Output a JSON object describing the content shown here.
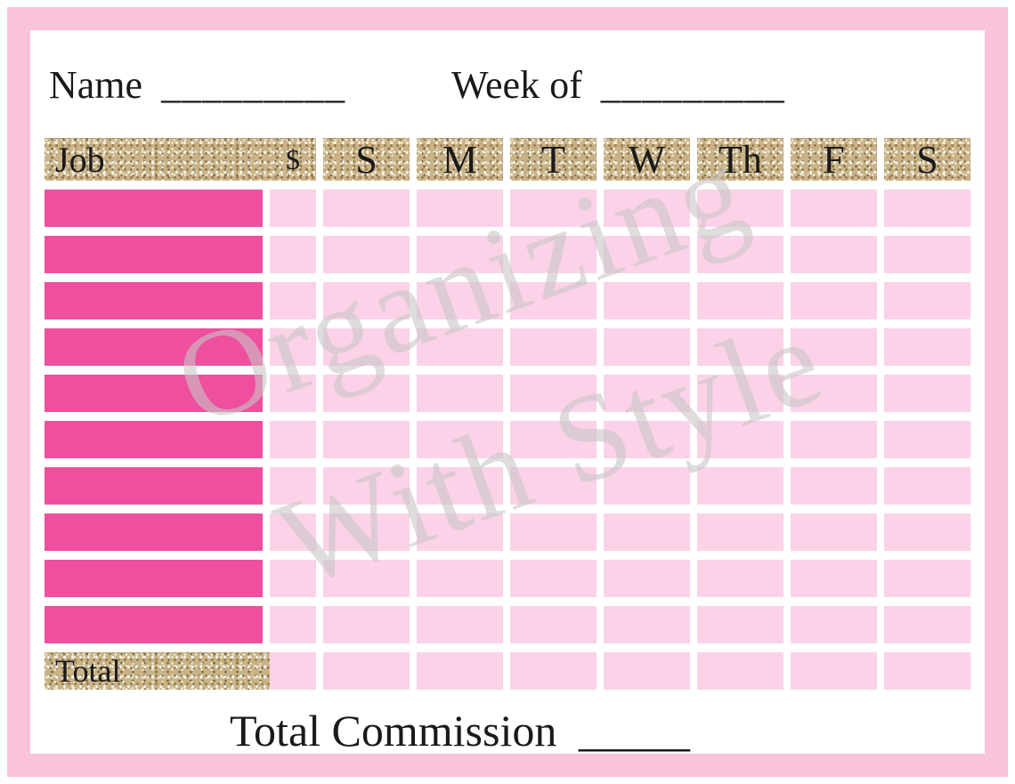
{
  "header": {
    "name_label": "Name",
    "name_blank": "_________",
    "week_of_label": "Week of",
    "week_of_blank": "_________"
  },
  "table": {
    "job_header": "Job",
    "day_columns": [
      "$",
      "S",
      "M",
      "T",
      "W",
      "Th",
      "F",
      "S"
    ],
    "row_count": 10,
    "total_label": "Total"
  },
  "footer": {
    "label": "Total Commission",
    "blank": "_____"
  },
  "watermark": {
    "line1": "Organizing",
    "line2": "With Style"
  },
  "colors": {
    "frame_pink": "#f9c3db",
    "hot_pink": "#ef4f9f",
    "light_pink": "#fbd2e7",
    "glitter_gold": "#c9b287",
    "watermark_gray": "#c9c6c8",
    "text_black": "#1a1a1a"
  }
}
